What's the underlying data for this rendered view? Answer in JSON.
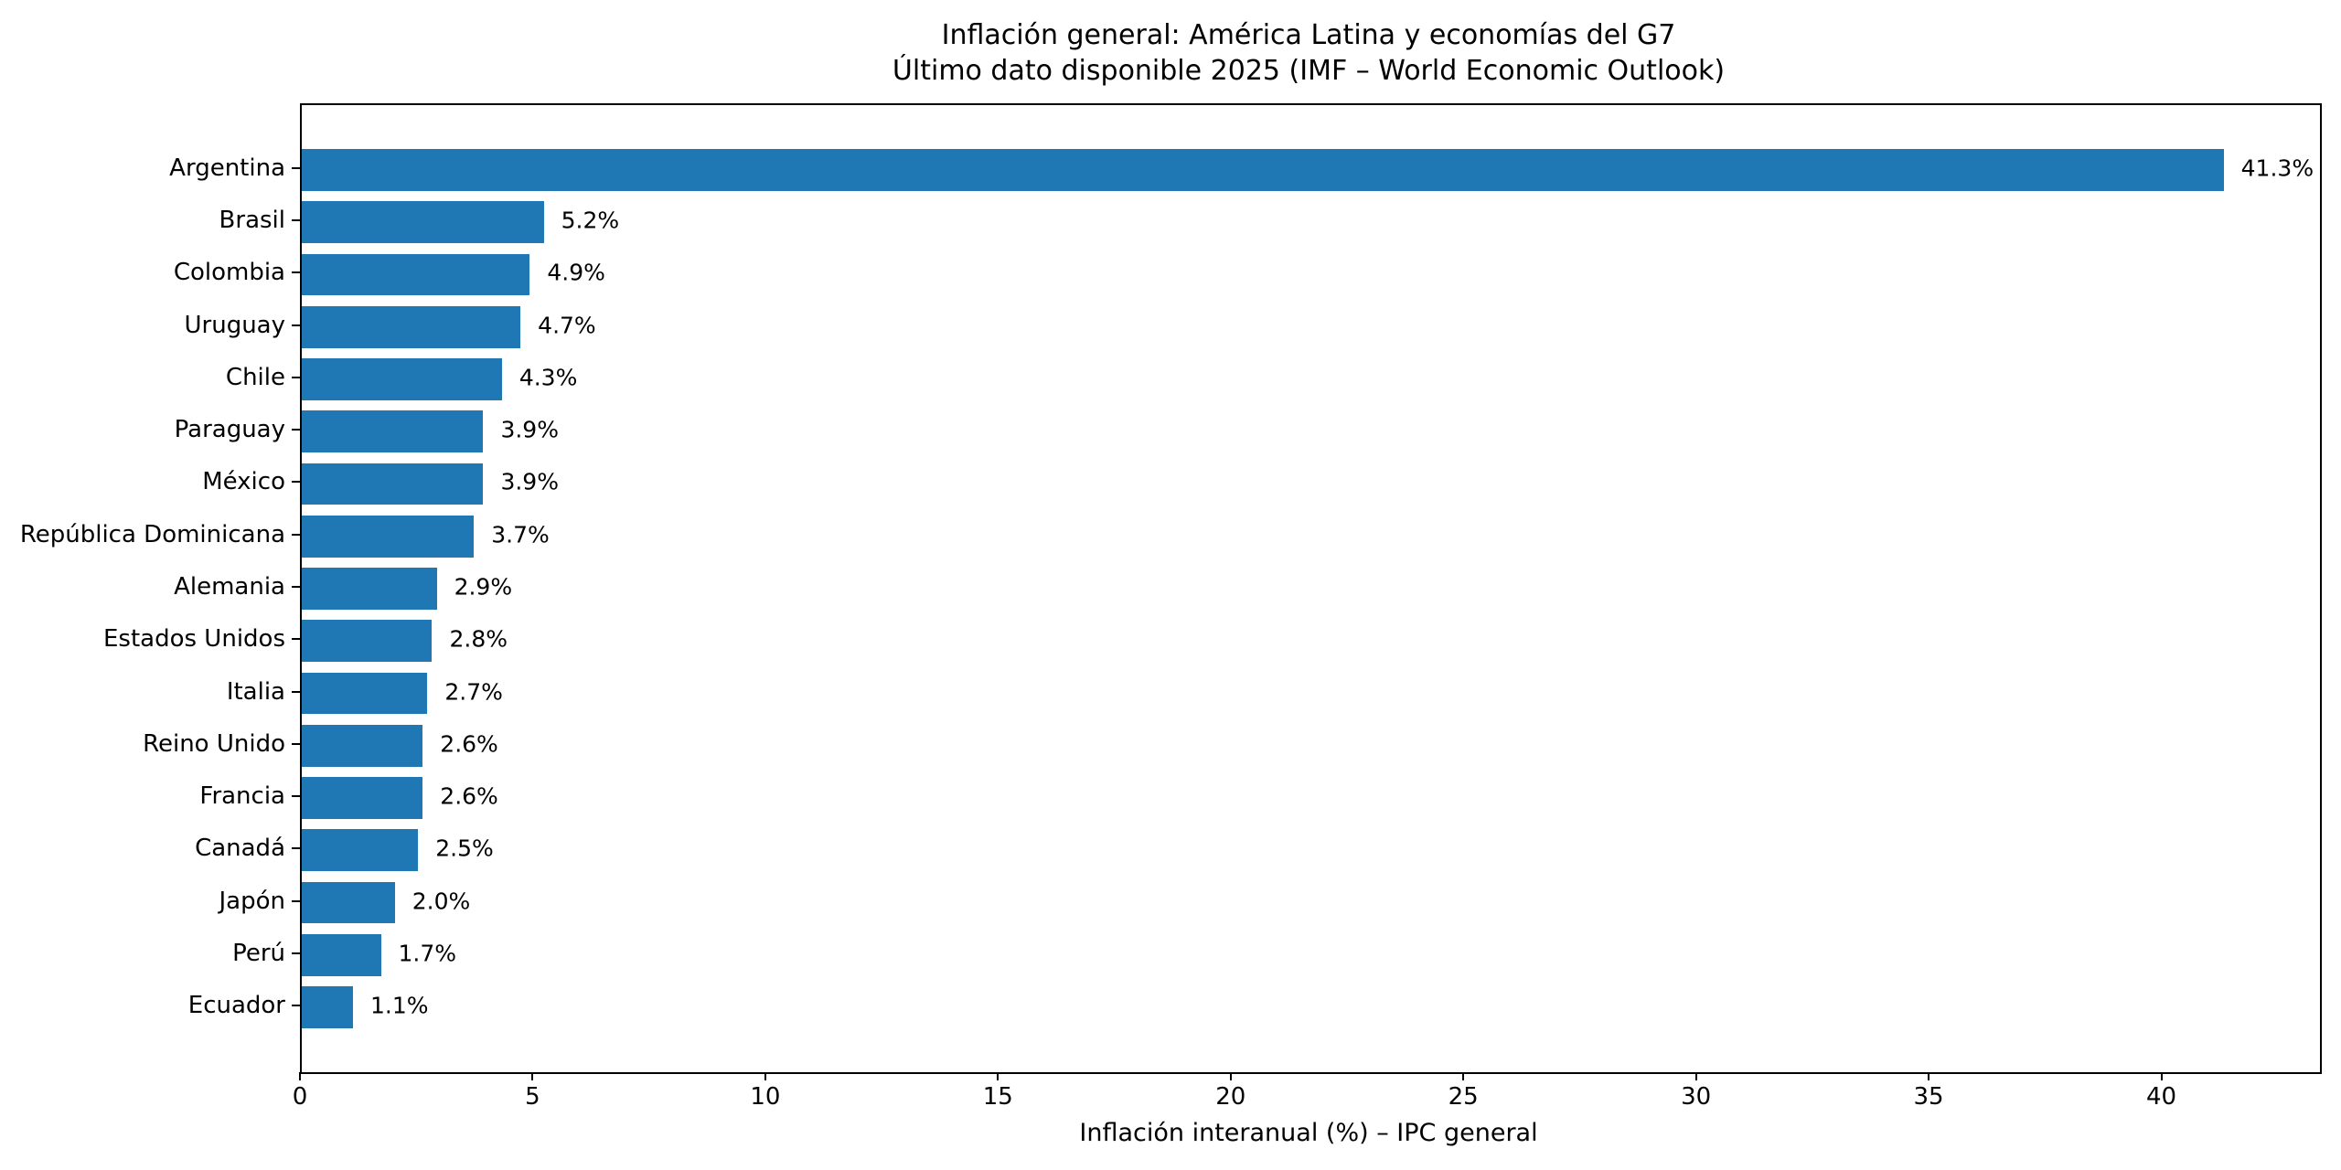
{
  "title": "Inflación general: América Latina y economías del G7",
  "subtitle": "Último dato disponible 2025 (IMF – World Economic Outlook)",
  "chart_data": {
    "type": "bar",
    "orientation": "horizontal",
    "title": "Inflación general: América Latina y economías del G7",
    "subtitle": "Último dato disponible 2025 (IMF – World Economic Outlook)",
    "xlabel": "Inflación interanual (%) – IPC general",
    "ylabel": "",
    "categories": [
      "Argentina",
      "Brasil",
      "Colombia",
      "Uruguay",
      "Chile",
      "Paraguay",
      "México",
      "República Dominicana",
      "Alemania",
      "Estados Unidos",
      "Italia",
      "Reino Unido",
      "Francia",
      "Canadá",
      "Japón",
      "Perú",
      "Ecuador"
    ],
    "values": [
      41.3,
      5.2,
      4.9,
      4.7,
      4.3,
      3.9,
      3.9,
      3.7,
      2.9,
      2.8,
      2.7,
      2.6,
      2.6,
      2.5,
      2.0,
      1.7,
      1.1
    ],
    "value_labels": [
      "41.3%",
      "5.2%",
      "4.9%",
      "4.7%",
      "4.3%",
      "3.9%",
      "3.9%",
      "3.7%",
      "2.9%",
      "2.8%",
      "2.7%",
      "2.6%",
      "2.6%",
      "2.5%",
      "2.0%",
      "1.7%",
      "1.1%"
    ],
    "x_ticks": [
      0,
      5,
      10,
      15,
      20,
      25,
      30,
      35,
      40
    ],
    "xlim": [
      0,
      43.37
    ],
    "grid": false,
    "legend": false,
    "bar_color": "#1f77b4",
    "text_color": "#000000",
    "spine_color": "#000000"
  }
}
